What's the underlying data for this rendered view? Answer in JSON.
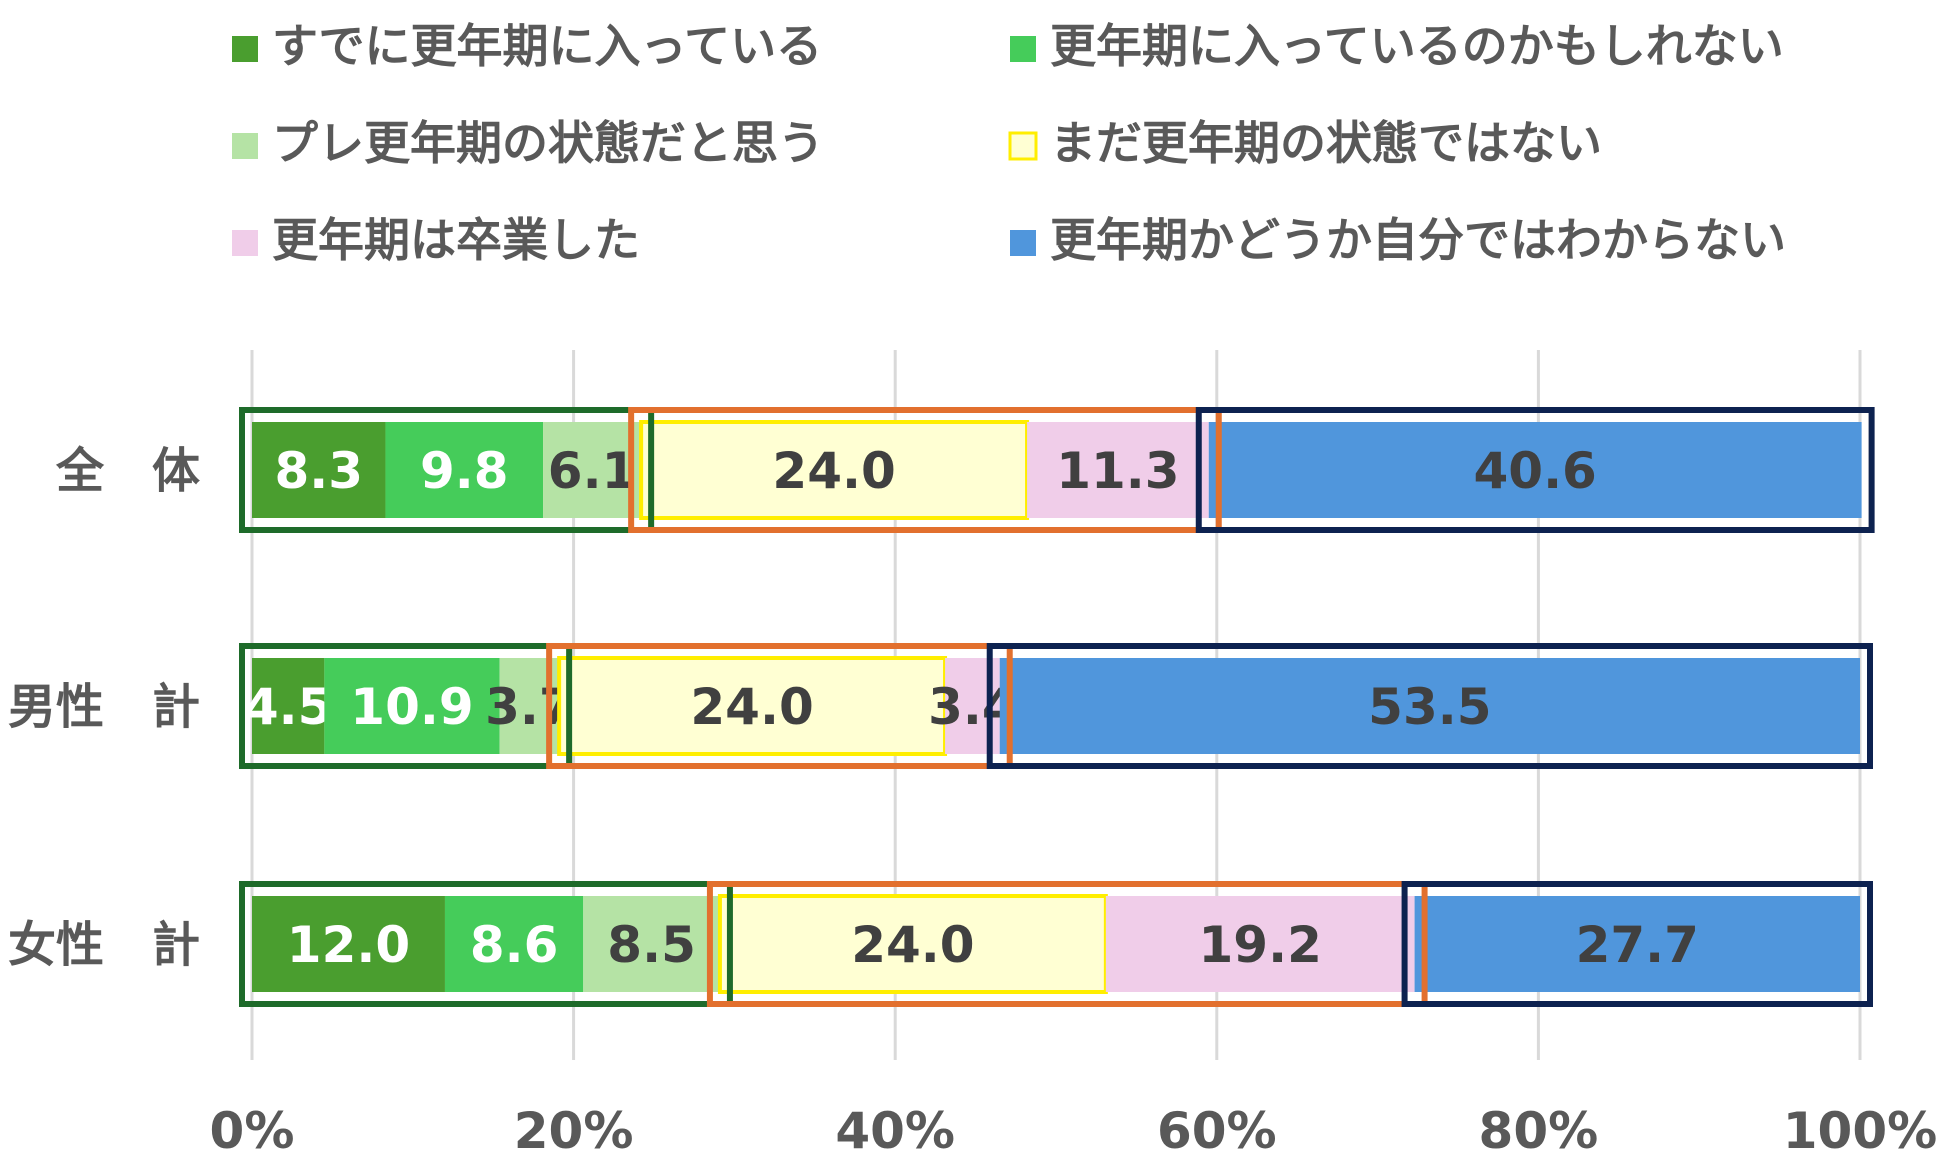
{
  "chart_data": {
    "type": "bar",
    "orientation": "horizontal",
    "stacked": true,
    "normalized_percent": true,
    "categories": [
      "全　体",
      "男性　計",
      "女性　計"
    ],
    "series": [
      {
        "name": "すでに更年期に入っている",
        "color": "#4a9e2f",
        "values": [
          8.3,
          4.5,
          12.0
        ]
      },
      {
        "name": "更年期に入っているのかもしれない",
        "color": "#45cc5a",
        "values": [
          9.8,
          10.9,
          8.6
        ]
      },
      {
        "name": "プレ更年期の状態だと思う",
        "color": "#b5e3a5",
        "values": [
          6.1,
          3.7,
          8.5
        ]
      },
      {
        "name": "まだ更年期の状態ではない",
        "color": "#ffffd3",
        "border": "#ffee00",
        "values": [
          24.0,
          24.0,
          24.0
        ]
      },
      {
        "name": "更年期は卒業した",
        "color": "#f0cde9",
        "values": [
          11.3,
          3.4,
          19.2
        ]
      },
      {
        "name": "更年期かどうか自分ではわからない",
        "color": "#5096dc",
        "values": [
          40.6,
          53.5,
          27.7
        ]
      }
    ],
    "label_colors": [
      "#ffffff",
      "#ffffff",
      "#404040",
      "#404040",
      "#404040",
      "#404040"
    ],
    "x_ticks": [
      "0%",
      "20%",
      "40%",
      "60%",
      "80%",
      "100%"
    ],
    "xlim": [
      0,
      100
    ],
    "grid": true,
    "legend_position": "top",
    "highlight_groups": [
      {
        "series": [
          0,
          1,
          2
        ],
        "color": "#1e6b2a"
      },
      {
        "series": [
          3,
          4
        ],
        "color": "#e2702e"
      },
      {
        "series": [
          5
        ],
        "color": "#0d2250"
      }
    ]
  }
}
